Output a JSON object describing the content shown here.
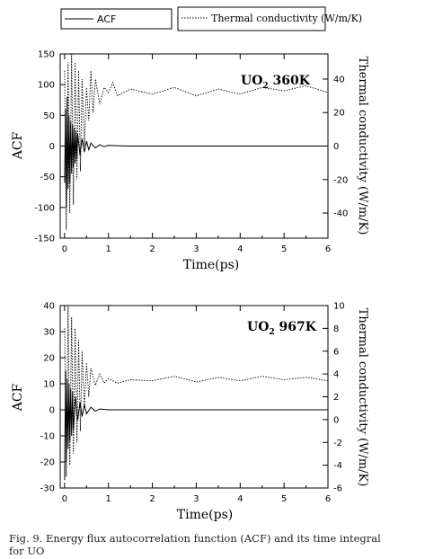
{
  "legend": {
    "acf_label": "ACF",
    "tc_label": "Thermal conductivity (W/m/K)"
  },
  "caption": {
    "line1": "Fig. 9. Energy flux autocorrelation function (ACF) and its time integral",
    "line2": "for UO"
  },
  "chart_data": [
    {
      "type": "line",
      "annotation": {
        "base": "UO",
        "sub": "2",
        "rest": " 360K"
      },
      "xlabel": "Time(ps)",
      "ylabel": "ACF",
      "y2label": "Thermal conductivity (W/m/K)",
      "xlim": [
        -0.1,
        6
      ],
      "ylim": [
        -150,
        150
      ],
      "y2lim": [
        -55,
        55
      ],
      "xticks": [
        0,
        1,
        2,
        3,
        4,
        5,
        6
      ],
      "yticks": [
        -150,
        -100,
        -50,
        0,
        50,
        100,
        150
      ],
      "yticklabels": [
        "-150",
        "-100",
        "-50",
        "0",
        "50",
        "100",
        "150"
      ],
      "y2ticks": [
        -40,
        -20,
        0,
        20,
        40
      ],
      "y2ticklabels": [
        "-40",
        "-20",
        "0",
        "20",
        "40"
      ],
      "series": [
        {
          "name": "ACF",
          "axis": "left",
          "style": "solid",
          "x": [
            0,
            0.02,
            0.04,
            0.06,
            0.08,
            0.1,
            0.12,
            0.14,
            0.16,
            0.18,
            0.2,
            0.22,
            0.24,
            0.26,
            0.28,
            0.3,
            0.35,
            0.4,
            0.45,
            0.5,
            0.55,
            0.6,
            0.7,
            0.8,
            0.9,
            1.0,
            1.2,
            1.5,
            2,
            3,
            4,
            5,
            6
          ],
          "values": [
            -60,
            60,
            -100,
            80,
            -70,
            50,
            -60,
            40,
            -45,
            35,
            -35,
            30,
            -28,
            25,
            -22,
            20,
            -15,
            12,
            -10,
            8,
            -6,
            5,
            -3,
            2,
            -1,
            1,
            0.5,
            0,
            0,
            0,
            0,
            0,
            0
          ]
        },
        {
          "name": "Thermal conductivity (W/m/K)",
          "axis": "right",
          "style": "dotted",
          "x": [
            0,
            0.04,
            0.08,
            0.12,
            0.16,
            0.2,
            0.24,
            0.28,
            0.32,
            0.36,
            0.4,
            0.45,
            0.5,
            0.55,
            0.6,
            0.65,
            0.7,
            0.8,
            0.9,
            1.0,
            1.1,
            1.2,
            1.5,
            2,
            2.5,
            3,
            3.5,
            4,
            4.5,
            5,
            5.5,
            6
          ],
          "values": [
            45,
            -50,
            50,
            -40,
            55,
            -35,
            50,
            -20,
            45,
            -15,
            40,
            0,
            35,
            15,
            45,
            20,
            40,
            25,
            35,
            32,
            38,
            30,
            34,
            31,
            35,
            30,
            34,
            31,
            35,
            33,
            36,
            32
          ]
        }
      ]
    },
    {
      "type": "line",
      "annotation": {
        "base": "UO",
        "sub": "2",
        "rest": " 967K"
      },
      "xlabel": "Time(ps)",
      "ylabel": "ACF",
      "y2label": "Thermal conductivity (W/m/K)",
      "xlim": [
        -0.1,
        6
      ],
      "ylim": [
        -30,
        40
      ],
      "y2lim": [
        -6,
        10
      ],
      "xticks": [
        0,
        1,
        2,
        3,
        4,
        5,
        6
      ],
      "yticks": [
        -30,
        -20,
        -10,
        0,
        10,
        20,
        30,
        40
      ],
      "yticklabels": [
        "-30",
        "-20",
        "-10",
        "0",
        "10",
        "20",
        "30",
        "40"
      ],
      "y2ticks": [
        -6,
        -4,
        -2,
        0,
        2,
        4,
        6,
        8,
        10
      ],
      "y2ticklabels": [
        "-6",
        "-4",
        "-2",
        "0",
        "2",
        "4",
        "6",
        "8",
        "10"
      ],
      "series": [
        {
          "name": "ACF",
          "axis": "left",
          "style": "solid",
          "x": [
            0,
            0.02,
            0.04,
            0.06,
            0.08,
            0.1,
            0.12,
            0.14,
            0.16,
            0.18,
            0.2,
            0.25,
            0.3,
            0.35,
            0.4,
            0.45,
            0.5,
            0.6,
            0.7,
            0.8,
            1.0,
            1.5,
            2,
            3,
            4,
            5,
            6
          ],
          "values": [
            -27,
            15,
            -20,
            12,
            -15,
            10,
            -12,
            8,
            -10,
            7,
            -8,
            5,
            -4,
            3,
            -2.5,
            2,
            -1.5,
            1,
            -0.5,
            0.3,
            0,
            0,
            0,
            0,
            0,
            0,
            0
          ]
        },
        {
          "name": "Thermal conductivity (W/m/K)",
          "axis": "right",
          "style": "dotted",
          "x": [
            0,
            0.04,
            0.08,
            0.12,
            0.16,
            0.2,
            0.24,
            0.28,
            0.32,
            0.36,
            0.4,
            0.45,
            0.5,
            0.55,
            0.6,
            0.7,
            0.8,
            0.9,
            1.0,
            1.2,
            1.5,
            2,
            2.5,
            3,
            3.5,
            4,
            4.5,
            5,
            5.5,
            6
          ],
          "values": [
            8,
            -5,
            10,
            -4,
            9,
            -3,
            8,
            -2,
            7,
            -1,
            6,
            1,
            5,
            2,
            4.5,
            3,
            4,
            3.2,
            3.6,
            3.2,
            3.5,
            3.4,
            3.8,
            3.3,
            3.7,
            3.4,
            3.8,
            3.5,
            3.7,
            3.4
          ]
        }
      ]
    }
  ]
}
